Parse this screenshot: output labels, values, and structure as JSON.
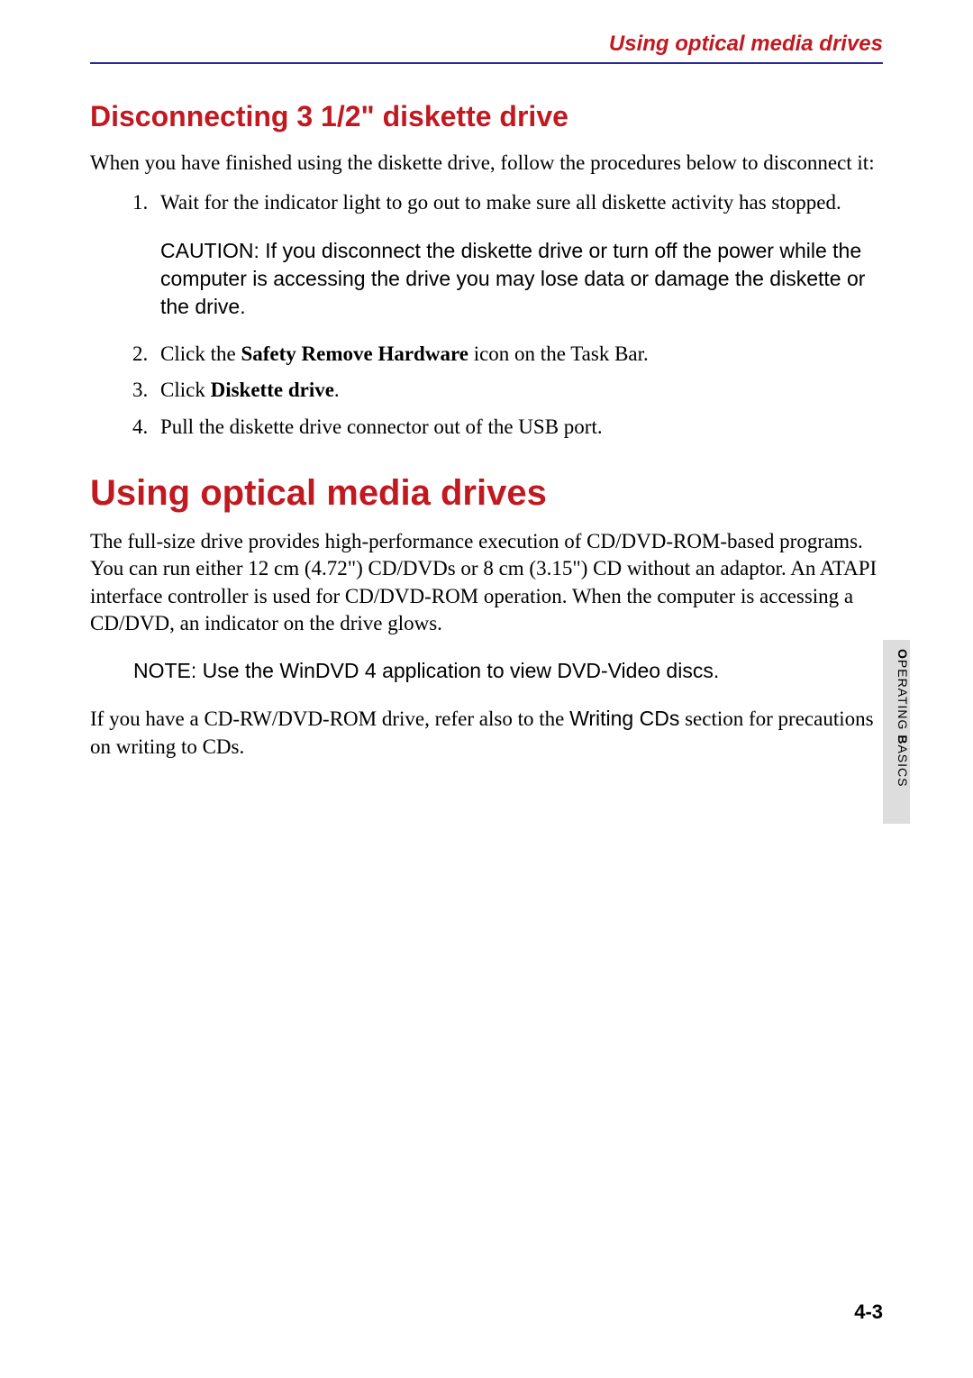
{
  "colors": {
    "header_text": "#c11920",
    "rule": "#2a2aa0",
    "h2": "#c11920",
    "h1": "#c11920",
    "body_text": "#000000",
    "side_tab_bg": "#dddddd",
    "side_tab_text": "#000000",
    "page_bg": "#ffffff"
  },
  "typography": {
    "body_font": "Times New Roman, serif",
    "heading_font": "Arial, Helvetica, sans-serif",
    "body_size_pt": 17,
    "h2_size_pt": 24,
    "h1_size_pt": 30,
    "running_header_size_pt": 18,
    "note_size_pt": 17,
    "page_num_size_pt": 17
  },
  "running_header": "Using optical  media drives",
  "section1": {
    "heading": "Disconnecting 3 1/2\" diskette drive",
    "intro": "When you have finished using the diskette drive, follow the procedures below to disconnect it:",
    "step1": "Wait for the indicator light to go out to make sure all diskette activity has stopped.",
    "caution": "CAUTION: If you disconnect the diskette drive or turn off the power while the computer is accessing the drive you may lose data or damage the diskette or the drive.",
    "step2_pre": "Click the ",
    "step2_bold": "Safety Remove Hardware",
    "step2_post": " icon on the Task Bar.",
    "step3_pre": "Click ",
    "step3_bold": "Diskette drive",
    "step3_post": ".",
    "step4": "Pull the diskette drive connector out of the USB port."
  },
  "section2": {
    "heading": "Using optical media drives",
    "para1": "The full-size drive provides high-performance execution of CD/DVD-ROM-based programs. You can run either 12 cm (4.72\") CD/DVDs or 8 cm (3.15\") CD without an adaptor. An ATAPI interface controller is used for CD/DVD-ROM operation. When the computer is accessing a CD/DVD, an indicator on the drive glows.",
    "note": "NOTE: Use the WinDVD 4 application to view DVD-Video discs.",
    "para2_pre": "If you have a CD-RW/DVD-ROM drive, refer also to the ",
    "para2_sans": "Writing CDs",
    "para2_post": " section for precautions on writing to CDs."
  },
  "side_tab": {
    "cap1": "O",
    "lower1": "PERATING",
    "space": " ",
    "cap2": "B",
    "lower2": "ASICS"
  },
  "page_number": "4-3"
}
